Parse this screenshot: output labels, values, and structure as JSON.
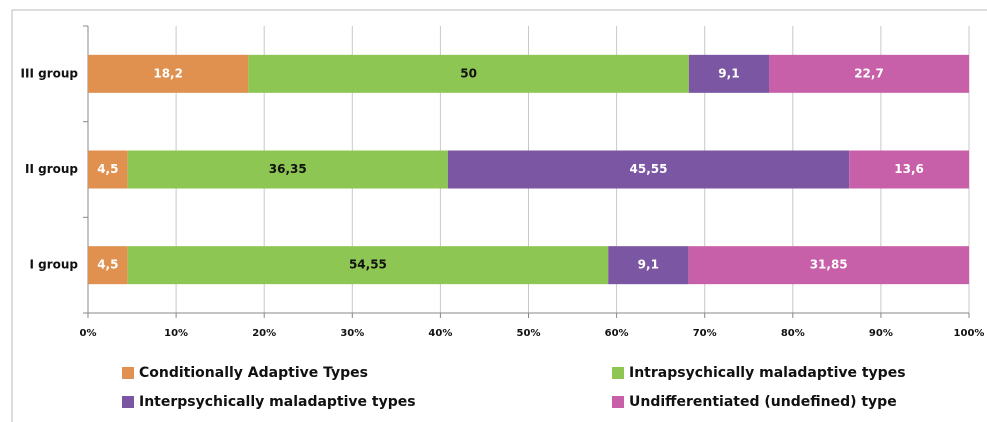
{
  "chart_data": {
    "type": "stacked-bar-horizontal-percent",
    "categories": [
      "III group",
      "II group",
      "I group"
    ],
    "series": [
      {
        "name": "Conditionally Adaptive Types",
        "color": "#e0914f",
        "label_color": "#ffffff",
        "values": [
          18.2,
          4.5,
          4.5
        ],
        "value_labels": [
          "18,2",
          "4,5",
          "4,5"
        ]
      },
      {
        "name": "Intrapsychically maladaptive types",
        "color": "#8dc653",
        "label_color": "#111111",
        "values": [
          50,
          36.35,
          54.55
        ],
        "value_labels": [
          "50",
          "36,35",
          "54,55"
        ]
      },
      {
        "name": "Interpsychically maladaptive types",
        "color": "#7b56a3",
        "label_color": "#ffffff",
        "values": [
          9.1,
          45.55,
          9.1
        ],
        "value_labels": [
          "9,1",
          "45,55",
          "9,1"
        ]
      },
      {
        "name": "Undifferentiated (undefined) type",
        "color": "#c760a8",
        "label_color": "#ffffff",
        "values": [
          22.7,
          13.6,
          31.85
        ],
        "value_labels": [
          "22,7",
          "13,6",
          "31,85"
        ]
      }
    ],
    "xlim": [
      0,
      100
    ],
    "xticks": [
      {
        "value": 0,
        "label": "0%"
      },
      {
        "value": 10,
        "label": "10%"
      },
      {
        "value": 20,
        "label": "20%"
      },
      {
        "value": 30,
        "label": "30%"
      },
      {
        "value": 40,
        "label": "40%"
      },
      {
        "value": 50,
        "label": "50%"
      },
      {
        "value": 60,
        "label": "60%"
      },
      {
        "value": 70,
        "label": "70%"
      },
      {
        "value": 80,
        "label": "80%"
      },
      {
        "value": 90,
        "label": "90%"
      },
      {
        "value": 100,
        "label": "100%"
      }
    ],
    "grid": true
  }
}
